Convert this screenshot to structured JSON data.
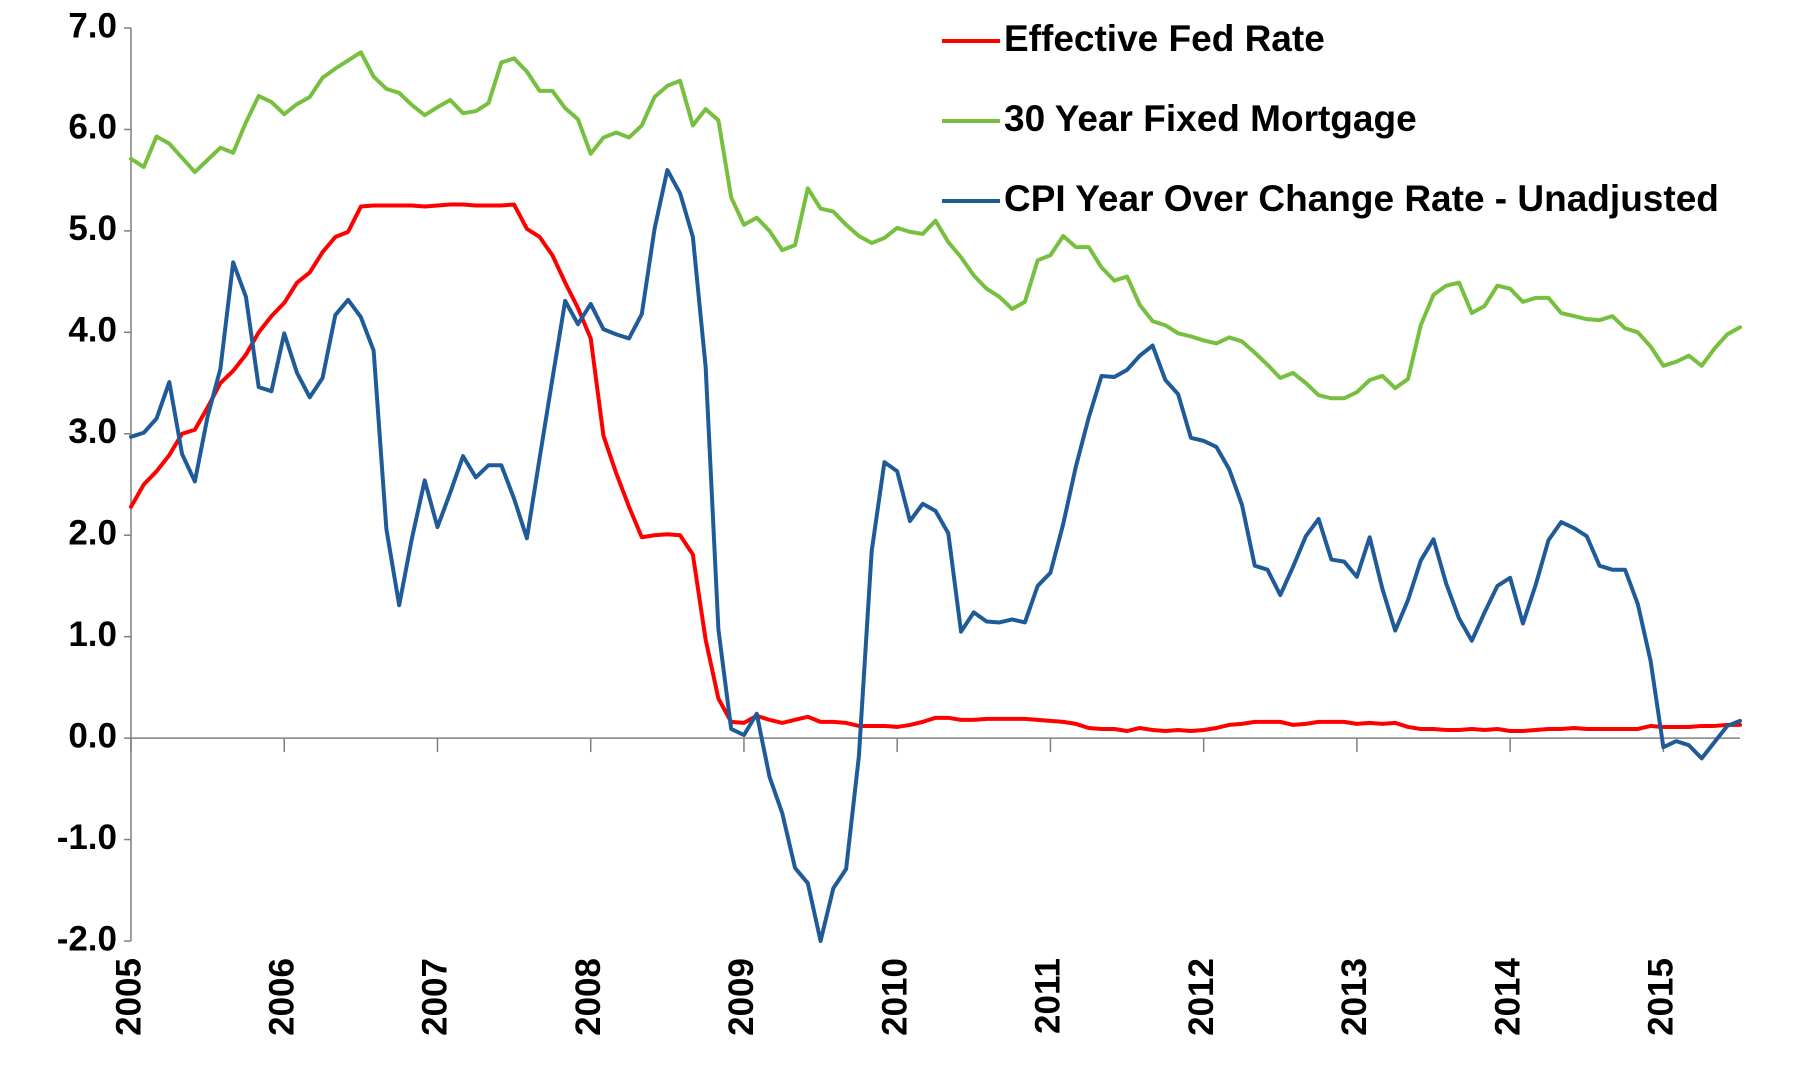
{
  "chart_data": {
    "type": "line",
    "categories": [
      "2005",
      null,
      null,
      null,
      null,
      null,
      null,
      null,
      null,
      null,
      null,
      null,
      "2006",
      null,
      null,
      null,
      null,
      null,
      null,
      null,
      null,
      null,
      null,
      null,
      "2007",
      null,
      null,
      null,
      null,
      null,
      null,
      null,
      null,
      null,
      null,
      null,
      "2008",
      null,
      null,
      null,
      null,
      null,
      null,
      null,
      null,
      null,
      null,
      null,
      "2009",
      null,
      null,
      null,
      null,
      null,
      null,
      null,
      null,
      null,
      null,
      null,
      "2010",
      null,
      null,
      null,
      null,
      null,
      null,
      null,
      null,
      null,
      null,
      null,
      "2011",
      null,
      null,
      null,
      null,
      null,
      null,
      null,
      null,
      null,
      null,
      null,
      "2012",
      null,
      null,
      null,
      null,
      null,
      null,
      null,
      null,
      null,
      null,
      null,
      "2013",
      null,
      null,
      null,
      null,
      null,
      null,
      null,
      null,
      null,
      null,
      null,
      "2014",
      null,
      null,
      null,
      null,
      null,
      null,
      null,
      null,
      null,
      null,
      null,
      "2015",
      null,
      null,
      null,
      null,
      null,
      null
    ],
    "series": [
      {
        "name": "Effective Fed Rate",
        "color": "#ff0000",
        "values": [
          2.28,
          2.5,
          2.63,
          2.79,
          3.0,
          3.04,
          3.26,
          3.5,
          3.62,
          3.78,
          4.0,
          4.16,
          4.29,
          4.49,
          4.59,
          4.79,
          4.94,
          4.99,
          5.24,
          5.25,
          5.25,
          5.25,
          5.25,
          5.24,
          5.25,
          5.26,
          5.26,
          5.25,
          5.25,
          5.25,
          5.26,
          5.02,
          4.94,
          4.76,
          4.49,
          4.24,
          3.94,
          2.98,
          2.61,
          2.28,
          1.98,
          2.0,
          2.01,
          2.0,
          1.81,
          0.97,
          0.39,
          0.16,
          0.15,
          0.22,
          0.18,
          0.15,
          0.18,
          0.21,
          0.16,
          0.16,
          0.15,
          0.12,
          0.12,
          0.12,
          0.11,
          0.13,
          0.16,
          0.2,
          0.2,
          0.18,
          0.18,
          0.19,
          0.19,
          0.19,
          0.19,
          0.18,
          0.17,
          0.16,
          0.14,
          0.1,
          0.09,
          0.09,
          0.07,
          0.1,
          0.08,
          0.07,
          0.08,
          0.07,
          0.08,
          0.1,
          0.13,
          0.14,
          0.16,
          0.16,
          0.16,
          0.13,
          0.14,
          0.16,
          0.16,
          0.16,
          0.14,
          0.15,
          0.14,
          0.15,
          0.11,
          0.09,
          0.09,
          0.08,
          0.08,
          0.09,
          0.08,
          0.09,
          0.07,
          0.07,
          0.08,
          0.09,
          0.09,
          0.1,
          0.09,
          0.09,
          0.09,
          0.09,
          0.09,
          0.12,
          0.11,
          0.11,
          0.11,
          0.12,
          0.12,
          0.13,
          0.13
        ]
      },
      {
        "name": "30 Year Fixed Mortgage",
        "color": "#77bf3f",
        "values": [
          5.71,
          5.63,
          5.93,
          5.86,
          5.72,
          5.58,
          5.7,
          5.82,
          5.77,
          6.07,
          6.33,
          6.27,
          6.15,
          6.25,
          6.32,
          6.51,
          6.6,
          6.68,
          6.76,
          6.52,
          6.4,
          6.36,
          6.24,
          6.14,
          6.22,
          6.29,
          6.16,
          6.18,
          6.26,
          6.66,
          6.7,
          6.57,
          6.38,
          6.38,
          6.21,
          6.1,
          5.76,
          5.92,
          5.97,
          5.92,
          6.04,
          6.32,
          6.43,
          6.48,
          6.04,
          6.2,
          6.09,
          5.33,
          5.06,
          5.13,
          5.0,
          4.81,
          4.86,
          5.42,
          5.22,
          5.19,
          5.06,
          4.95,
          4.88,
          4.93,
          5.03,
          4.99,
          4.97,
          5.1,
          4.89,
          4.74,
          4.56,
          4.43,
          4.35,
          4.23,
          4.3,
          4.71,
          4.76,
          4.95,
          4.84,
          4.84,
          4.64,
          4.51,
          4.55,
          4.27,
          4.11,
          4.07,
          3.99,
          3.96,
          3.92,
          3.89,
          3.95,
          3.91,
          3.8,
          3.68,
          3.55,
          3.6,
          3.5,
          3.38,
          3.35,
          3.35,
          3.41,
          3.53,
          3.57,
          3.45,
          3.54,
          4.07,
          4.37,
          4.46,
          4.49,
          4.19,
          4.26,
          4.46,
          4.43,
          4.3,
          4.34,
          4.34,
          4.19,
          4.16,
          4.13,
          4.12,
          4.16,
          4.04,
          4.0,
          3.86,
          3.67,
          3.71,
          3.77,
          3.67,
          3.84,
          3.98,
          4.05
        ]
      },
      {
        "name": "CPI Year Over Change Rate - Unadjusted",
        "color": "#1f5b98",
        "values": [
          2.97,
          3.01,
          3.15,
          3.51,
          2.8,
          2.53,
          3.17,
          3.64,
          4.69,
          4.35,
          3.46,
          3.42,
          3.99,
          3.6,
          3.36,
          3.55,
          4.17,
          4.32,
          4.15,
          3.82,
          2.06,
          1.31,
          1.97,
          2.54,
          2.08,
          2.42,
          2.78,
          2.57,
          2.69,
          2.69,
          2.36,
          1.97,
          2.76,
          3.54,
          4.31,
          4.08,
          4.28,
          4.03,
          3.98,
          3.94,
          4.18,
          5.02,
          5.6,
          5.37,
          4.94,
          3.66,
          1.07,
          0.09,
          0.03,
          0.24,
          -0.38,
          -0.74,
          -1.28,
          -1.43,
          -2.0,
          -1.48,
          -1.29,
          -0.18,
          1.84,
          2.72,
          2.63,
          2.14,
          2.31,
          2.24,
          2.02,
          1.05,
          1.24,
          1.15,
          1.14,
          1.17,
          1.14,
          1.5,
          1.63,
          2.11,
          2.68,
          3.16,
          3.57,
          3.56,
          3.63,
          3.77,
          3.87,
          3.53,
          3.39,
          2.96,
          2.93,
          2.87,
          2.65,
          2.3,
          1.7,
          1.66,
          1.41,
          1.69,
          1.99,
          2.16,
          1.76,
          1.74,
          1.59,
          1.98,
          1.47,
          1.06,
          1.36,
          1.75,
          1.96,
          1.52,
          1.18,
          0.96,
          1.24,
          1.5,
          1.58,
          1.13,
          1.51,
          1.95,
          2.13,
          2.07,
          1.99,
          1.7,
          1.66,
          1.66,
          1.32,
          0.76,
          -0.09,
          -0.03,
          -0.07,
          -0.2,
          -0.04,
          0.12,
          0.17
        ]
      }
    ],
    "ylim": [
      -2,
      7
    ],
    "yticks": [
      {
        "value": 7,
        "label": "7.0"
      },
      {
        "value": 6,
        "label": "6.0"
      },
      {
        "value": 5,
        "label": "5.0"
      },
      {
        "value": 4,
        "label": "4.0"
      },
      {
        "value": 3,
        "label": "3.0"
      },
      {
        "value": 2,
        "label": "2.0"
      },
      {
        "value": 1,
        "label": "1.0"
      },
      {
        "value": 0,
        "label": "0.0"
      },
      {
        "value": -1,
        "label": "-1.0"
      },
      {
        "value": -2,
        "label": "-2.0"
      }
    ],
    "grid": false,
    "legend": "upper right"
  }
}
